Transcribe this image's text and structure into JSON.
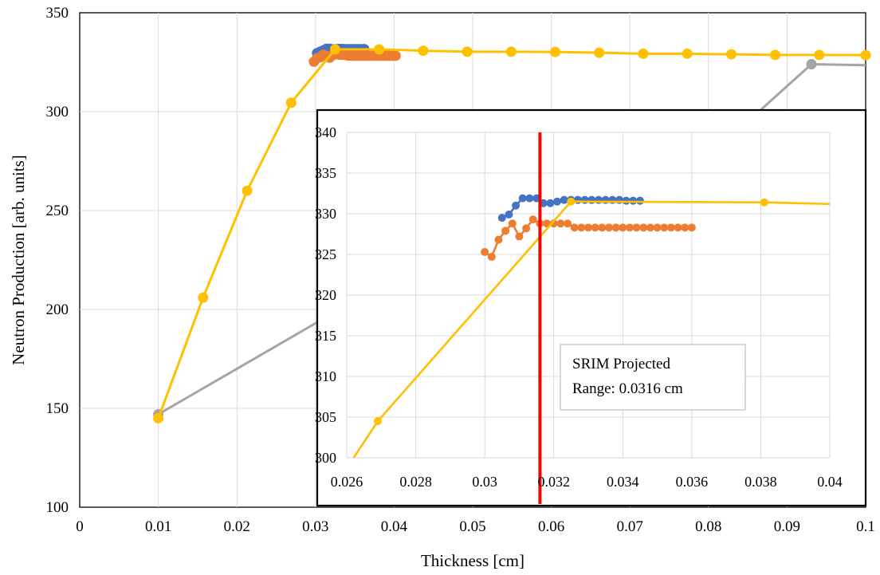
{
  "chart_data": [
    {
      "type": "line",
      "role": "main",
      "title": "",
      "xlabel": "Thickness [cm]",
      "ylabel": "Neutron Production [arb. units]",
      "xlim": [
        0,
        0.1
      ],
      "ylim": [
        100,
        350
      ],
      "grid": true,
      "legend": "none",
      "x_ticks": [
        0,
        0.01,
        0.02,
        0.03,
        0.04,
        0.05,
        0.06,
        0.07,
        0.08,
        0.09,
        0.1
      ],
      "x_tick_labels": [
        "0",
        "0.01",
        "0.02",
        "0.03",
        "0.04",
        "0.05",
        "0.06",
        "0.07",
        "0.08",
        "0.09",
        "0.1"
      ],
      "y_ticks": [
        100,
        150,
        200,
        250,
        300,
        350
      ],
      "y_tick_labels": [
        "100",
        "150",
        "200",
        "250",
        "300",
        "350"
      ],
      "series": [
        {
          "color": "#a5a5a5",
          "markers": [
            true,
            false,
            false,
            false,
            false,
            true,
            false
          ],
          "points": [
            [
              0.01,
              147
            ],
            [
              0.03,
              193
            ],
            [
              0.07,
              261
            ],
            [
              0.0747,
              270
            ],
            [
              0.085,
              295
            ],
            [
              0.0931,
              324
            ],
            [
              0.1,
              323.5
            ]
          ]
        },
        {
          "color": "#4472c4",
          "markers": true,
          "points": [
            [
              0.0302,
              329.6
            ],
            [
              0.0306,
              330.3
            ],
            [
              0.031,
              331.0
            ],
            [
              0.0314,
              331.8
            ],
            [
              0.0318,
              331.8
            ],
            [
              0.0322,
              331.5
            ],
            [
              0.0326,
              331.6
            ],
            [
              0.033,
              331.7
            ],
            [
              0.0334,
              331.7
            ],
            [
              0.0338,
              331.6
            ],
            [
              0.0342,
              331.6
            ],
            [
              0.0346,
              331.6
            ],
            [
              0.035,
              331.6
            ],
            [
              0.0354,
              331.6
            ],
            [
              0.0358,
              331.6
            ],
            [
              0.0362,
              331.6
            ]
          ]
        },
        {
          "color": "#ed7d31",
          "markers": true,
          "points": [
            [
              0.0298,
              325.3
            ],
            [
              0.0302,
              327.0
            ],
            [
              0.0306,
              327.5
            ],
            [
              0.031,
              328.8
            ],
            [
              0.0314,
              328.2
            ],
            [
              0.0318,
              327.3
            ],
            [
              0.0322,
              328.5
            ],
            [
              0.0326,
              329.3
            ],
            [
              0.033,
              328.8
            ],
            [
              0.0334,
              328.8
            ],
            [
              0.0338,
              328.7
            ],
            [
              0.0342,
              328.3
            ],
            [
              0.0346,
              328.3
            ],
            [
              0.035,
              328.3
            ],
            [
              0.0354,
              328.3
            ],
            [
              0.0358,
              328.3
            ],
            [
              0.0362,
              328.3
            ],
            [
              0.0366,
              328.3
            ],
            [
              0.037,
              328.3
            ],
            [
              0.0374,
              328.3
            ],
            [
              0.0378,
              328.3
            ],
            [
              0.0382,
              328.3
            ],
            [
              0.0386,
              328.3
            ],
            [
              0.039,
              328.3
            ],
            [
              0.0394,
              328.3
            ],
            [
              0.0398,
              328.3
            ],
            [
              0.0402,
              328.3
            ]
          ]
        },
        {
          "color": "#ffc000",
          "markers": true,
          "points": [
            [
              0.01,
              145
            ],
            [
              0.0157,
              206
            ],
            [
              0.0213,
              260
            ],
            [
              0.0269,
              304.5
            ],
            [
              0.0325,
              331.5
            ],
            [
              0.0381,
              331.5
            ],
            [
              0.0437,
              330.8
            ],
            [
              0.0493,
              330.3
            ],
            [
              0.0549,
              330.3
            ],
            [
              0.0605,
              330.2
            ],
            [
              0.0661,
              329.8
            ],
            [
              0.0717,
              329.3
            ],
            [
              0.0773,
              329.3
            ],
            [
              0.0829,
              329.0
            ],
            [
              0.0885,
              328.7
            ],
            [
              0.0941,
              328.7
            ],
            [
              0.1,
              328.6
            ]
          ]
        }
      ]
    },
    {
      "type": "line",
      "role": "inset",
      "xlim": [
        0.026,
        0.04
      ],
      "ylim": [
        300,
        340
      ],
      "grid": true,
      "legend": "none",
      "x_ticks": [
        0.026,
        0.028,
        0.03,
        0.032,
        0.034,
        0.036,
        0.038,
        0.04
      ],
      "x_tick_labels": [
        "0.026",
        "0.028",
        "0.03",
        "0.032",
        "0.034",
        "0.036",
        "0.038",
        "0.04"
      ],
      "y_ticks": [
        300,
        305,
        310,
        315,
        320,
        325,
        330,
        335,
        340
      ],
      "y_tick_labels": [
        "300",
        "305",
        "310",
        "315",
        "320",
        "325",
        "330",
        "335",
        "340"
      ],
      "vertical_line": {
        "x": 0.0316,
        "color": "#ff0000"
      },
      "annotation": {
        "lines": [
          "SRIM Projected",
          "Range: 0.0316 cm"
        ]
      },
      "series": [
        {
          "color": "#4472c4",
          "markers": true,
          "points": [
            [
              0.0305,
              329.5
            ],
            [
              0.0307,
              329.9
            ],
            [
              0.0309,
              331.0
            ],
            [
              0.0311,
              331.9
            ],
            [
              0.0313,
              331.9
            ],
            [
              0.0315,
              331.9
            ],
            [
              0.0317,
              331.3
            ],
            [
              0.0319,
              331.3
            ],
            [
              0.0321,
              331.5
            ],
            [
              0.0323,
              331.7
            ],
            [
              0.0325,
              331.7
            ],
            [
              0.0327,
              331.7
            ],
            [
              0.0329,
              331.7
            ],
            [
              0.0331,
              331.7
            ],
            [
              0.0333,
              331.7
            ],
            [
              0.0335,
              331.7
            ],
            [
              0.0337,
              331.7
            ],
            [
              0.0339,
              331.7
            ],
            [
              0.0341,
              331.6
            ],
            [
              0.0343,
              331.6
            ],
            [
              0.0345,
              331.6
            ]
          ]
        },
        {
          "color": "#ed7d31",
          "markers": true,
          "points": [
            [
              0.03,
              325.3
            ],
            [
              0.0302,
              324.7
            ],
            [
              0.0304,
              326.8
            ],
            [
              0.0306,
              327.9
            ],
            [
              0.0308,
              328.8
            ],
            [
              0.031,
              327.2
            ],
            [
              0.0312,
              328.2
            ],
            [
              0.0314,
              329.3
            ],
            [
              0.0316,
              328.8
            ],
            [
              0.0318,
              328.8
            ],
            [
              0.032,
              328.8
            ],
            [
              0.0322,
              328.8
            ],
            [
              0.0324,
              328.8
            ],
            [
              0.0326,
              328.3
            ],
            [
              0.0328,
              328.3
            ],
            [
              0.033,
              328.3
            ],
            [
              0.0332,
              328.3
            ],
            [
              0.0334,
              328.3
            ],
            [
              0.0336,
              328.3
            ],
            [
              0.0338,
              328.3
            ],
            [
              0.034,
              328.3
            ],
            [
              0.0342,
              328.3
            ],
            [
              0.0344,
              328.3
            ],
            [
              0.0346,
              328.3
            ],
            [
              0.0348,
              328.3
            ],
            [
              0.035,
              328.3
            ],
            [
              0.0352,
              328.3
            ],
            [
              0.0354,
              328.3
            ],
            [
              0.0356,
              328.3
            ],
            [
              0.0358,
              328.3
            ],
            [
              0.036,
              328.3
            ]
          ]
        },
        {
          "color": "#ffc000",
          "markers": [
            false,
            true,
            true,
            true,
            false
          ],
          "points": [
            [
              0.0262,
              300
            ],
            [
              0.0269,
              304.5
            ],
            [
              0.0325,
              331.5
            ],
            [
              0.0381,
              331.4
            ],
            [
              0.04,
              331.2
            ]
          ]
        }
      ]
    }
  ]
}
